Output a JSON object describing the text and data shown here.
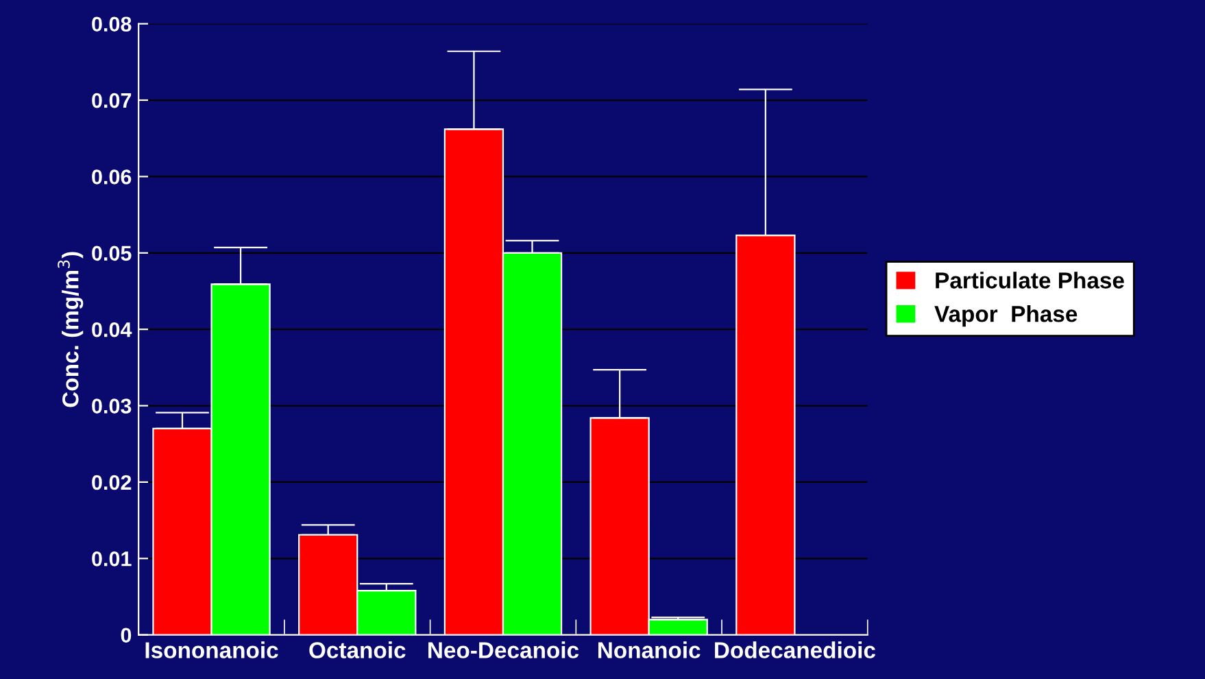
{
  "chart_data": {
    "type": "bar",
    "ylabel": "Conc. (mg/m$^{3}$)",
    "categories": [
      "Isononanoic",
      "Octanoic",
      "Neo-Decanoic",
      "Nonanoic",
      "Dodecanedioic"
    ],
    "series": [
      {
        "name": "Particulate Phase",
        "color": "#ff0000",
        "values": [
          0.027,
          0.0131,
          0.0662,
          0.0284,
          0.0523
        ],
        "errors": [
          [
            0.027,
            0.0291
          ],
          [
            0.0131,
            0.0144
          ],
          [
            0.0662,
            0.0764
          ],
          [
            0.0284,
            0.0347
          ],
          [
            0.0523,
            0.0714
          ]
        ]
      },
      {
        "name": "Vapor  Phase",
        "color": "#00ff00",
        "values": [
          0.0459,
          0.0058,
          0.05,
          0.002,
          null
        ],
        "errors": [
          [
            0.0459,
            0.0507
          ],
          [
            0.0058,
            0.0067
          ],
          [
            0.05,
            0.0516
          ],
          [
            0.002,
            0.0023
          ],
          null
        ]
      }
    ],
    "ylim": [
      0,
      0.08
    ],
    "yticks": [
      {
        "value": 0,
        "label": "0"
      },
      0.01,
      0.02,
      0.03,
      0.04,
      0.05,
      0.06,
      0.07,
      0.08
    ],
    "grid": "y",
    "legend": "right"
  }
}
